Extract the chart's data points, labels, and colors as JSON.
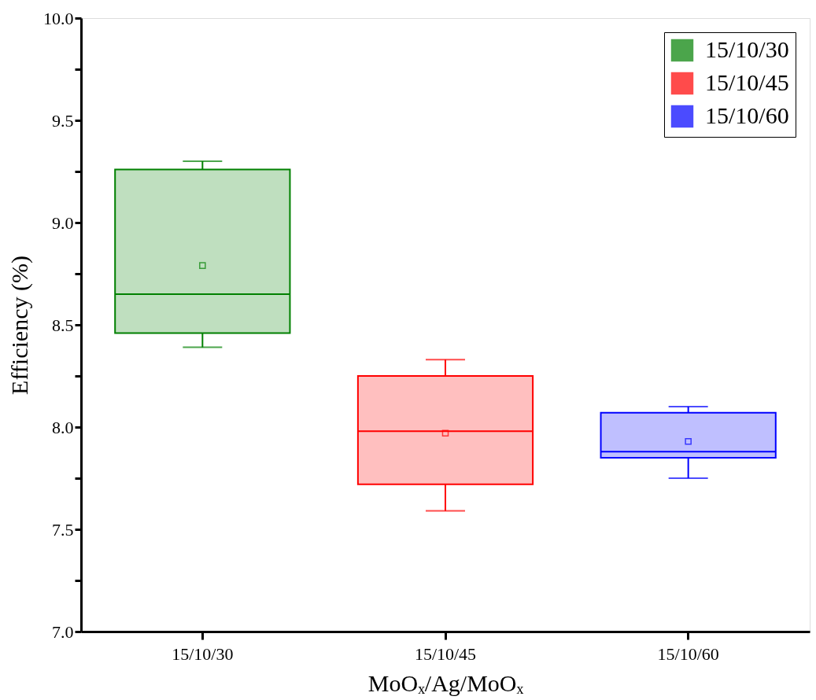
{
  "chart_data": {
    "type": "box",
    "categories": [
      "15/10/30",
      "15/10/45",
      "15/10/60"
    ],
    "series": [
      {
        "name": "15/10/30",
        "color": "#008000",
        "boxes": [
          {
            "low": 8.39,
            "q1": 8.46,
            "median": 8.65,
            "q3": 9.26,
            "high": 9.3,
            "mean": 8.79
          },
          null,
          null
        ]
      },
      {
        "name": "15/10/45",
        "color": "#ff0000",
        "boxes": [
          null,
          {
            "low": 7.59,
            "q1": 7.72,
            "median": 7.98,
            "q3": 8.25,
            "high": 8.33,
            "mean": 7.97
          },
          null
        ]
      },
      {
        "name": "15/10/60",
        "color": "#0000ff",
        "boxes": [
          null,
          null,
          {
            "low": 7.75,
            "q1": 7.85,
            "median": 7.88,
            "q3": 8.07,
            "high": 8.1,
            "mean": 7.93
          }
        ]
      }
    ],
    "xlabel": "MoOₓ/Ag/MoOₓ",
    "ylabel": "Efficiency (%)",
    "ylim": [
      7.0,
      10.0
    ],
    "yticks": [
      {
        "value": 7.0,
        "label": "7.0"
      },
      {
        "value": 7.25,
        "label": null
      },
      {
        "value": 7.5,
        "label": "7.5"
      },
      {
        "value": 7.75,
        "label": null
      },
      {
        "value": 8.0,
        "label": "8.0"
      },
      {
        "value": 8.25,
        "label": null
      },
      {
        "value": 8.5,
        "label": "8.5"
      },
      {
        "value": 8.75,
        "label": null
      },
      {
        "value": 9.0,
        "label": "9.0"
      },
      {
        "value": 9.25,
        "label": null
      },
      {
        "value": 9.5,
        "label": "9.5"
      },
      {
        "value": 9.75,
        "label": null
      },
      {
        "value": 10.0,
        "label": "10.0"
      }
    ],
    "legend": "top right",
    "grid": false,
    "marker": "square"
  }
}
